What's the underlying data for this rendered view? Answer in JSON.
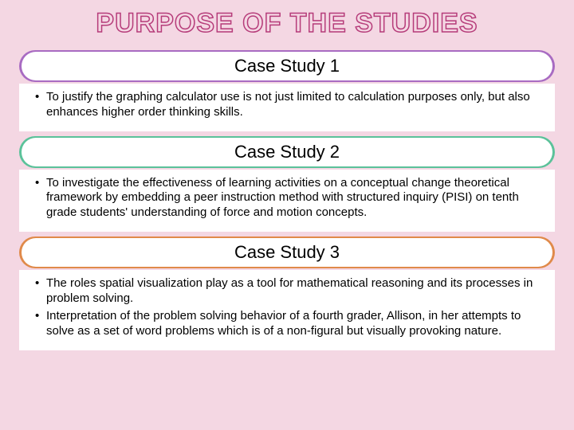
{
  "page": {
    "title": "PURPOSE OF THE STUDIES",
    "background_color": "#f4d7e3",
    "title_stroke_color": "#b63c7a",
    "title_fill_color": "#f4d7e3",
    "title_fontsize": 34
  },
  "sections": [
    {
      "label": "Case Study 1",
      "band_color": "#a86bc2",
      "text_color": "#000000",
      "bullets": [
        "To justify the graphing calculator use is not just limited to calculation purposes only, but also enhances higher order thinking skills."
      ]
    },
    {
      "label": "Case Study 2",
      "band_color": "#5bc29a",
      "text_color": "#000000",
      "bullets": [
        "To investigate the effectiveness of learning activities on a conceptual change theoretical framework by embedding a peer instruction method with structured inquiry (PISI) on tenth grade students' understanding of force and motion concepts."
      ]
    },
    {
      "label": "Case Study 3",
      "band_color": "#e08a4a",
      "text_color": "#000000",
      "bullets": [
        "The roles spatial visualization play as a tool for mathematical reasoning and its processes in problem solving.",
        "Interpretation of the problem solving behavior of a fourth grader, Allison, in her attempts to solve as a set of word problems which is of a non-figural but visually provoking nature."
      ]
    }
  ]
}
